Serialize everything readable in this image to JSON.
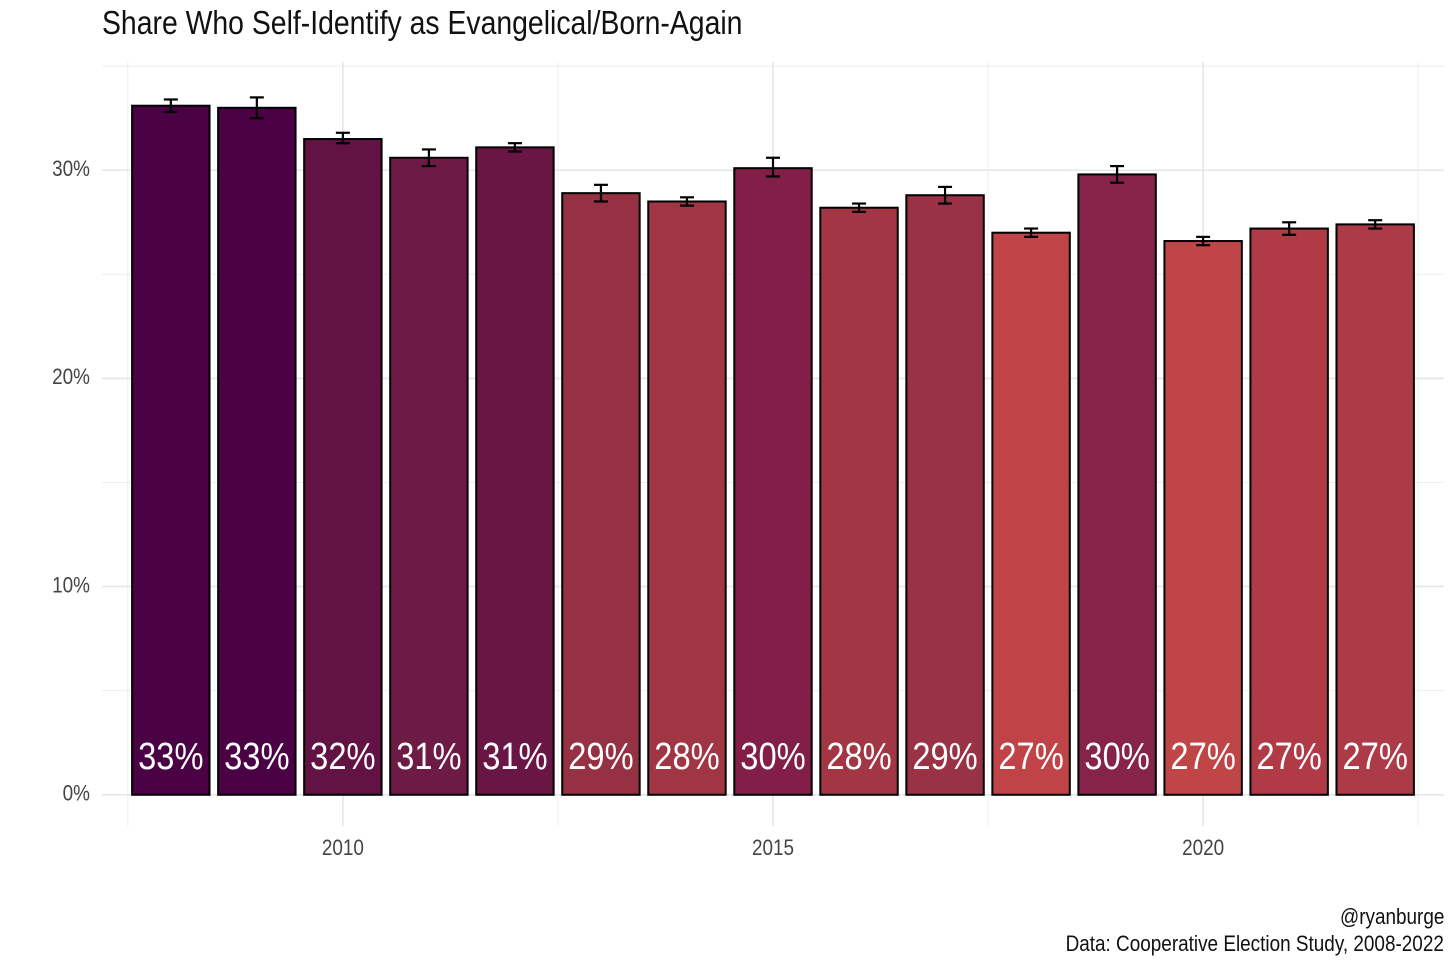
{
  "chart_data": {
    "type": "bar",
    "title": "Share Who Self-Identify as Evangelical/Born-Again",
    "xlabel": "",
    "ylabel": "",
    "x": [
      2008,
      2009,
      2010,
      2011,
      2012,
      2013,
      2014,
      2015,
      2016,
      2017,
      2018,
      2019,
      2020,
      2021,
      2022
    ],
    "values": [
      0.331,
      0.33,
      0.315,
      0.306,
      0.311,
      0.289,
      0.285,
      0.301,
      0.282,
      0.288,
      0.27,
      0.298,
      0.266,
      0.272,
      0.274
    ],
    "error_low": [
      0.328,
      0.325,
      0.313,
      0.302,
      0.309,
      0.285,
      0.283,
      0.297,
      0.28,
      0.284,
      0.268,
      0.294,
      0.264,
      0.269,
      0.272
    ],
    "error_high": [
      0.334,
      0.335,
      0.318,
      0.31,
      0.313,
      0.293,
      0.287,
      0.306,
      0.284,
      0.292,
      0.272,
      0.302,
      0.268,
      0.275,
      0.276
    ],
    "data_labels": [
      "33%",
      "33%",
      "32%",
      "31%",
      "31%",
      "29%",
      "28%",
      "30%",
      "28%",
      "29%",
      "27%",
      "30%",
      "27%",
      "27%",
      "27%"
    ],
    "colors": [
      "#4b0245",
      "#4b0245",
      "#631244",
      "#6d1a45",
      "#6a1645",
      "#953143",
      "#a03544",
      "#821f48",
      "#a33645",
      "#983244",
      "#bf4347",
      "#862349",
      "#c04547",
      "#b03b47",
      "#ad3a47"
    ],
    "y_ticks": [
      0,
      0.1,
      0.2,
      0.3
    ],
    "y_tick_labels": [
      "0%",
      "10%",
      "20%",
      "30%"
    ],
    "x_ticks": [
      2010,
      2015,
      2020
    ],
    "x_tick_labels": [
      "2010",
      "2015",
      "2020"
    ],
    "xlim": [
      2007.2,
      2022.8
    ],
    "ylim": [
      -0.015,
      0.352
    ],
    "grid": true,
    "legend": "none"
  },
  "caption": {
    "handle": "@ryanburge",
    "source": "Data: Cooperative Election Study, 2008-2022"
  }
}
